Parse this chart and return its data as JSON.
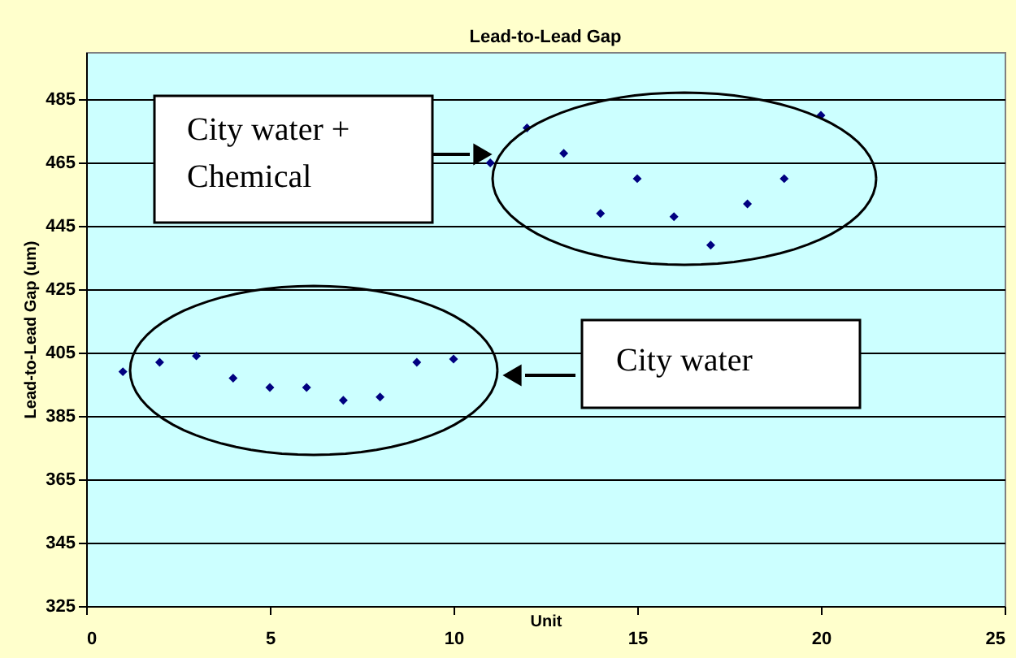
{
  "chart_data": {
    "type": "scatter",
    "title": "Lead-to-Lead Gap",
    "xlabel": "Unit",
    "ylabel": "Lead-to-Lead Gap (um)",
    "x": [
      1,
      2,
      3,
      4,
      5,
      6,
      7,
      8,
      9,
      10,
      11,
      12,
      13,
      14,
      15,
      16,
      17,
      18,
      19,
      20
    ],
    "series": [
      {
        "color": "#000080",
        "values": [
          399,
          402,
          404,
          397,
          394,
          394,
          390,
          391,
          402,
          403,
          465,
          476,
          468,
          449,
          460,
          448,
          439,
          452,
          460,
          480
        ]
      }
    ],
    "xlim": [
      0,
      25
    ],
    "xticks": [
      0,
      5,
      10,
      15,
      20,
      25
    ],
    "ylim": [
      325,
      500
    ],
    "yticks": [
      325,
      345,
      365,
      385,
      405,
      425,
      445,
      465,
      485
    ],
    "grid": "y",
    "marker": "diamond",
    "legend": false,
    "annotations": [
      "City water +\nChemical",
      "City water"
    ]
  }
}
